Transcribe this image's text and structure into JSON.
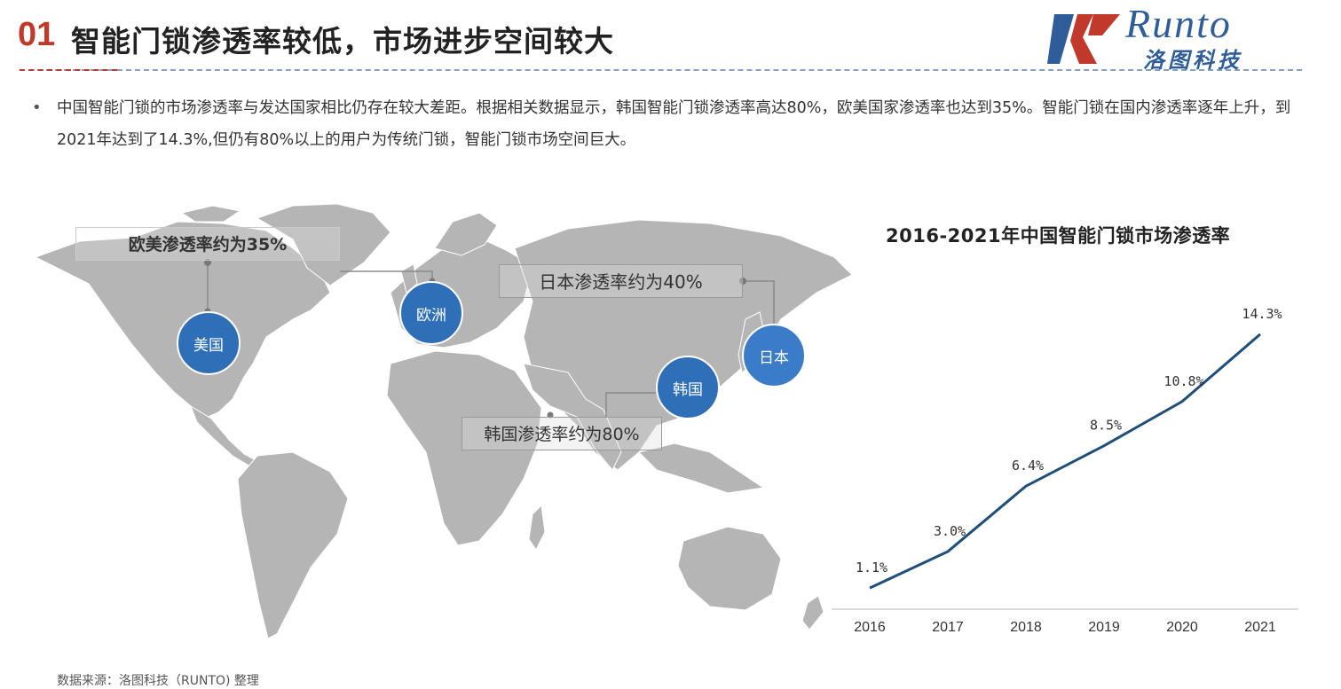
{
  "header": {
    "number": "01",
    "title": "智能门锁渗透率较低，市场进步空间较大"
  },
  "logo": {
    "brand_en": "Runto",
    "brand_cn": "洛图科技"
  },
  "bullet": {
    "symbol": "•",
    "text": "中国智能门锁的市场渗透率与发达国家相比仍存在较大差距。根据相关数据显示，韩国智能门锁渗透率高达80%，欧美国家渗透率也达到35%。智能门锁在国内渗透率逐年上升，到2021年达到了14.3%,但仍有80%以上的用户为传统门锁，智能门锁市场空间巨大。"
  },
  "map": {
    "callouts": {
      "us_eu": "欧美渗透率约为35%",
      "japan": "日本渗透率约为40%",
      "korea": "韩国渗透率约为80%"
    },
    "bubbles": {
      "usa": "美国",
      "europe": "欧洲",
      "korea": "韩国",
      "japan": "日本"
    },
    "colors": {
      "land": "#b5b5b5",
      "bubble": "#2e6fb8"
    }
  },
  "source": "数据来源：洛图科技（RUNTO) 整理",
  "chart_data": {
    "type": "line",
    "title": "2016-2021年中国智能门锁市场渗透率",
    "categories": [
      "2016",
      "2017",
      "2018",
      "2019",
      "2020",
      "2021"
    ],
    "values": [
      1.1,
      3.0,
      6.4,
      8.5,
      10.8,
      14.3
    ],
    "data_labels": [
      "1.1%",
      "3.0%",
      "6.4%",
      "8.5%",
      "10.8%",
      "14.3%"
    ],
    "ylim": [
      0,
      16
    ],
    "grid": false,
    "color": "#1f4e79",
    "xlabel": "",
    "ylabel": ""
  }
}
